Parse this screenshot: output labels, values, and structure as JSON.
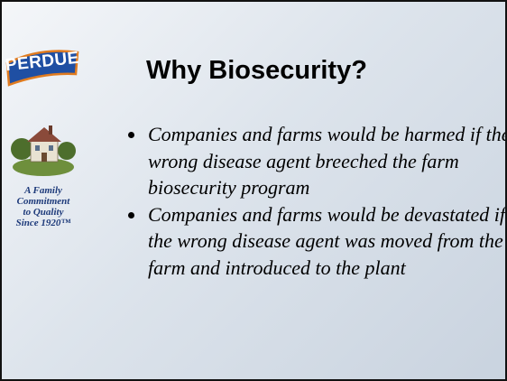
{
  "logo": {
    "text": "PERDUE",
    "tagline": [
      "A Family",
      "Commitment",
      "to Quality",
      "Since 1920™"
    ]
  },
  "title": "Why Biosecurity?",
  "bullets": [
    "Companies and farms would be harmed if the wrong disease agent breeched the farm biosecurity program",
    "Companies and farms would be devastated if the wrong disease agent was moved from the farm and introduced to the plant"
  ]
}
